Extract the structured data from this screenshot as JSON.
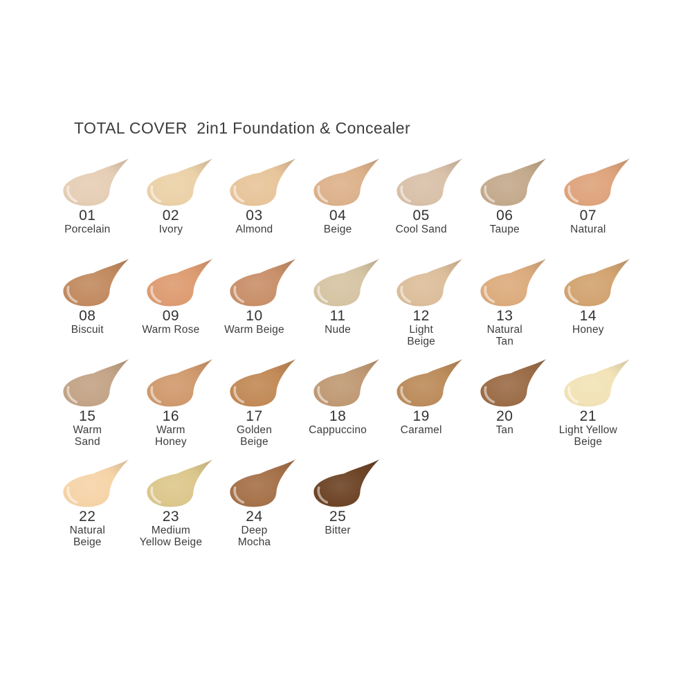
{
  "title": "TOTAL COVER  2in1 Foundation & Concealer",
  "text_color": "#3c3c3c",
  "rows": [
    7,
    7,
    7,
    4
  ],
  "shades": [
    {
      "number": "01",
      "name_lines": [
        "Porcelain"
      ],
      "color": "#E6CEB6"
    },
    {
      "number": "02",
      "name_lines": [
        "Ivory"
      ],
      "color": "#EBD1A8"
    },
    {
      "number": "03",
      "name_lines": [
        "Almond"
      ],
      "color": "#E8C59B"
    },
    {
      "number": "04",
      "name_lines": [
        "Beige"
      ],
      "color": "#DCB28B"
    },
    {
      "number": "05",
      "name_lines": [
        "Cool Sand"
      ],
      "color": "#D9C1A9"
    },
    {
      "number": "06",
      "name_lines": [
        "Taupe"
      ],
      "color": "#C4AA8D"
    },
    {
      "number": "07",
      "name_lines": [
        "Natural"
      ],
      "color": "#DEA47D"
    },
    {
      "number": "08",
      "name_lines": [
        "Biscuit"
      ],
      "color": "#C28B61"
    },
    {
      "number": "09",
      "name_lines": [
        "Warm Rose"
      ],
      "color": "#DE9C72"
    },
    {
      "number": "10",
      "name_lines": [
        "Warm Beige"
      ],
      "color": "#C9906A"
    },
    {
      "number": "11",
      "name_lines": [
        "Nude"
      ],
      "color": "#D6C5A4"
    },
    {
      "number": "12",
      "name_lines": [
        "Light",
        "Beige"
      ],
      "color": "#DCBE9B"
    },
    {
      "number": "13",
      "name_lines": [
        "Natural",
        "Tan"
      ],
      "color": "#DCAC7E"
    },
    {
      "number": "14",
      "name_lines": [
        "Honey"
      ],
      "color": "#D2A471"
    },
    {
      "number": "15",
      "name_lines": [
        "Warm",
        "Sand"
      ],
      "color": "#C3A487"
    },
    {
      "number": "16",
      "name_lines": [
        "Warm",
        "Honey"
      ],
      "color": "#D09A6E"
    },
    {
      "number": "17",
      "name_lines": [
        "Golden",
        "Beige"
      ],
      "color": "#C28A57"
    },
    {
      "number": "18",
      "name_lines": [
        "Cappuccino"
      ],
      "color": "#C09A75"
    },
    {
      "number": "19",
      "name_lines": [
        "Caramel"
      ],
      "color": "#BC8C5C"
    },
    {
      "number": "20",
      "name_lines": [
        "Tan"
      ],
      "color": "#9C6D48"
    },
    {
      "number": "21",
      "name_lines": [
        "Light Yellow",
        "Beige"
      ],
      "color": "#F2E3B7"
    },
    {
      "number": "22",
      "name_lines": [
        "Natural",
        "Beige"
      ],
      "color": "#F6D4A8"
    },
    {
      "number": "23",
      "name_lines": [
        "Medium",
        "Yellow Beige"
      ],
      "color": "#DCC78C"
    },
    {
      "number": "24",
      "name_lines": [
        "Deep",
        "Mocha"
      ],
      "color": "#A6724A"
    },
    {
      "number": "25",
      "name_lines": [
        "Bitter"
      ],
      "color": "#6E4527"
    }
  ]
}
